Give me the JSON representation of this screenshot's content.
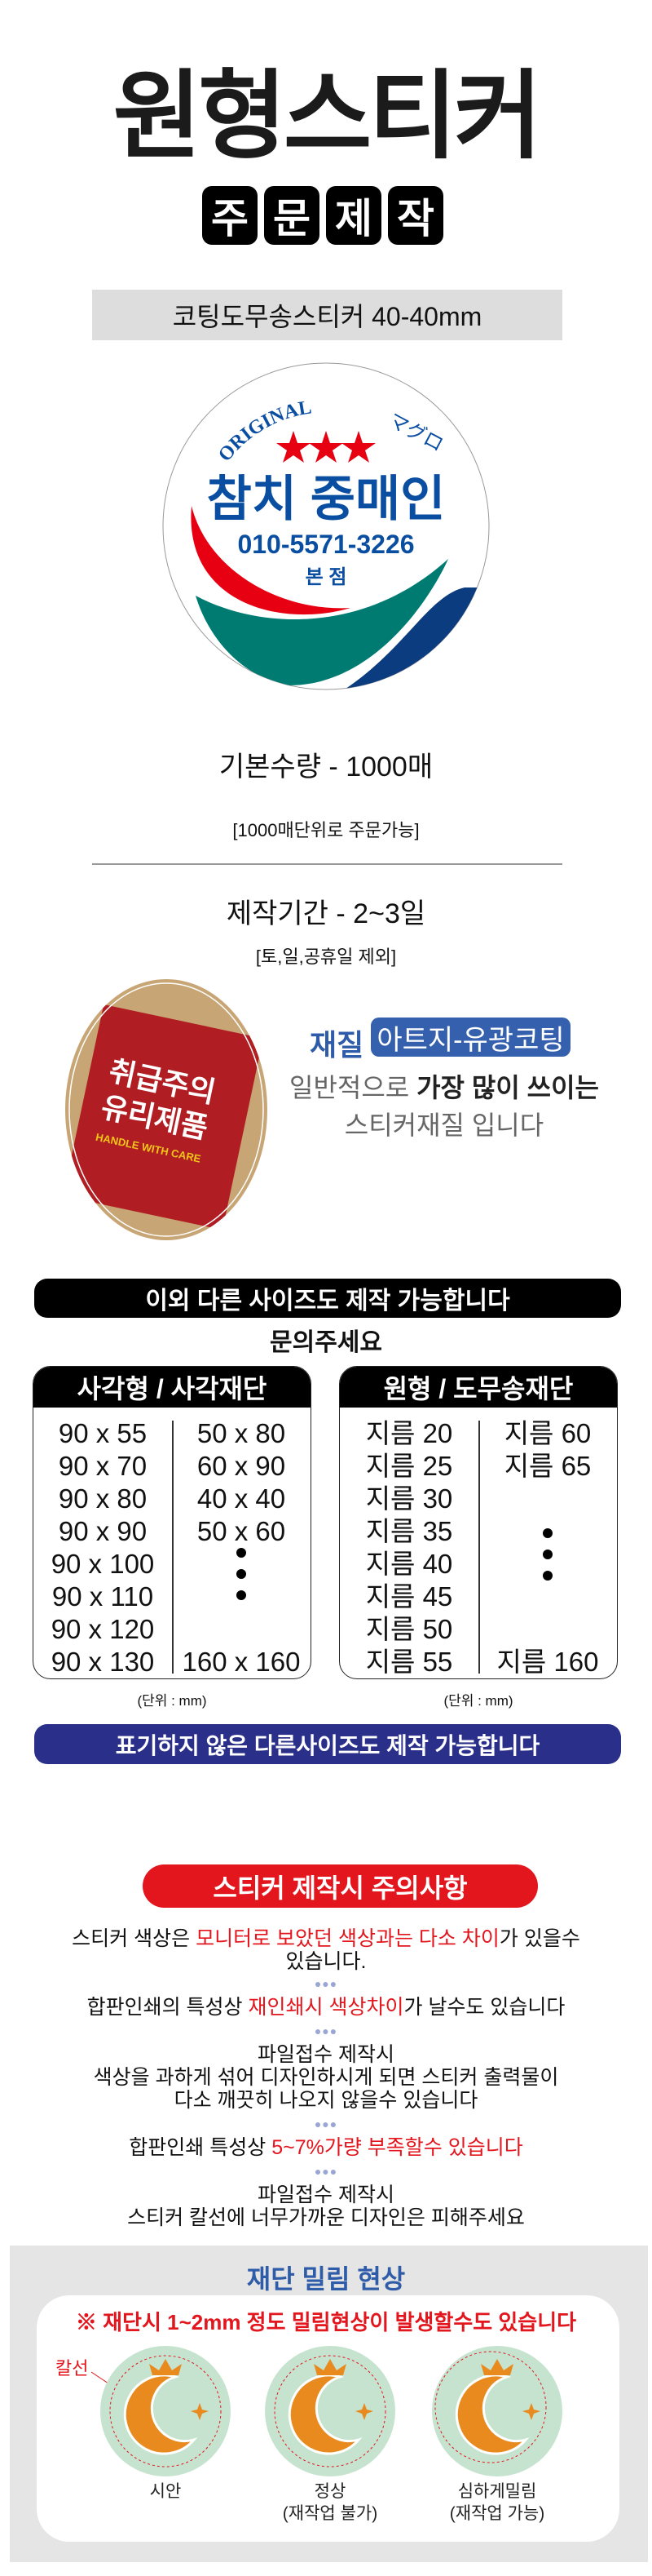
{
  "header": {
    "title": "원형스티커",
    "subtitle_chars": [
      "주",
      "문",
      "제",
      "작"
    ],
    "product_name": "코팅도무송스티커 40-40mm"
  },
  "sticker_sample": {
    "top_text": "ORIGINAL",
    "japanese_text": "マグロ",
    "name": "참치 중매인",
    "phone": "010-5571-3226",
    "branch": "본 점",
    "colors": {
      "blue": "#0a4ea2",
      "red": "#e60012",
      "teal": "#007b72",
      "navy": "#0b3c80"
    }
  },
  "info": {
    "quantity": "기본수량 - 1000매",
    "quantity_note": "[1000매단위로 주문가능]",
    "period": "제작기간 - 2~3일",
    "period_note": "[토,일,공휴일 제외]"
  },
  "material": {
    "photo_text_line1": "취급주의",
    "photo_text_line2": "유리제품",
    "photo_text_line3": "HANDLE WITH CARE",
    "label": "재질",
    "value": "아트지-유광코팅",
    "desc_prefix": "일반적으로 ",
    "desc_bold": "가장 많이 쓰이는",
    "desc_line2": "스티커재질 입니다"
  },
  "sizes": {
    "banner": "이외 다른 사이즈도 제작 가능합니다",
    "inquire": "문의주세요",
    "square": {
      "title": "사각형 / 사각재단",
      "left": [
        "90 x 55",
        "90 x 70",
        "90 x 80",
        "90 x 90",
        "90 x 100",
        "90 x 110",
        "90 x 120",
        "90 x 130"
      ],
      "right": [
        "50 x 80",
        "60 x 90",
        "40 x 40",
        "50 x 60"
      ],
      "right_last": "160 x 160",
      "unit": "(단위 : mm)"
    },
    "round": {
      "title": "원형 / 도무송재단",
      "left": [
        "지름 20",
        "지름 25",
        "지름 30",
        "지름 35",
        "지름 40",
        "지름 45",
        "지름 50",
        "지름 55"
      ],
      "right": [
        "지름 60",
        "지름 65"
      ],
      "right_last": "지름 160",
      "unit": "(단위 : mm)"
    },
    "other_banner": "표기하지 않은 다른사이즈도 제작 가능합니다"
  },
  "caution": {
    "title": "스티커 제작시 주의사항",
    "item1": {
      "a": "스티커 색상은 ",
      "red": "모니터로 보았던 색상과는 다소 차이",
      "b": "가 있을수",
      "c": "있습니다."
    },
    "item2": {
      "a": "합판인쇄의 특성상 ",
      "red": "재인쇄시 색상차이",
      "b": "가 날수도 있습니다"
    },
    "item3": [
      "파일접수 제작시",
      "색상을 과하게 섞어 디자인하시게 되면 스티커 출력물이",
      "다소 깨끗히 나오지 않을수 있습니다"
    ],
    "item4": {
      "a": "합판인쇄 특성상 ",
      "red": "5~7%가량 부족할수 있습니다"
    },
    "item5": [
      "파일접수 제작시",
      "스티커 칼선에 너무가까운 디자인은 피해주세요"
    ],
    "separator": "●●●",
    "accent": "#e3151d"
  },
  "cut_shift": {
    "title": "재단 밀림 현상",
    "warning": "※ 재단시 1~2mm 정도 밀림현상이 발생할수도 있습니다",
    "cutline_label": "칼선",
    "samples": [
      {
        "label": "시안",
        "note": ""
      },
      {
        "label": "정상",
        "note": "(재작업 불가)"
      },
      {
        "label": "심하게밀림",
        "note": "(재작업 가능)"
      }
    ]
  }
}
